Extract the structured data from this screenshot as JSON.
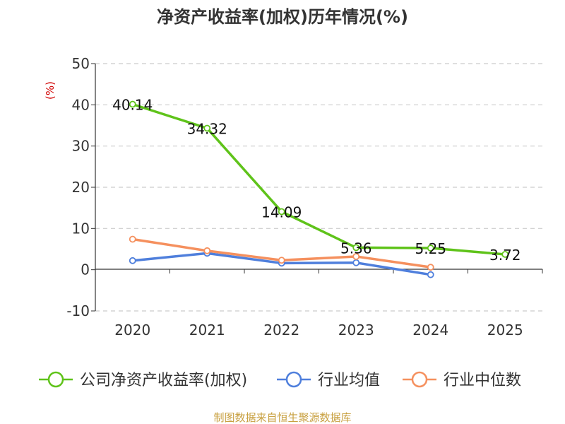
{
  "colors": {
    "company": "#5fc31a",
    "industry_avg": "#4f7fdc",
    "industry_median": "#f5905e",
    "axis": "#333333",
    "grid": "#cccccc",
    "ylabel": "#d10000",
    "source": "#c8a040"
  },
  "chart_data": {
    "type": "line",
    "title": "净资产收益率(加权)历年情况(%)",
    "ylabel": "(%)",
    "xlabel": "",
    "categories": [
      "2020",
      "2021",
      "2022",
      "2023",
      "2024",
      "2025"
    ],
    "ylim": [
      -10,
      50
    ],
    "yticks": [
      -10,
      0,
      10,
      20,
      30,
      40,
      50
    ],
    "grid": true,
    "legend_position": "bottom",
    "series": [
      {
        "name": "公司净资产收益率(加权)",
        "values": [
          40.14,
          34.32,
          14.09,
          5.36,
          5.25,
          3.72
        ],
        "labels": [
          "40.14",
          "34.32",
          "14.09",
          "5.36",
          "5.25",
          "3.72"
        ]
      },
      {
        "name": "行业均值",
        "values": [
          2.2,
          4.0,
          1.6,
          1.7,
          -1.2,
          null
        ]
      },
      {
        "name": "行业中位数",
        "values": [
          7.4,
          4.6,
          2.3,
          3.2,
          0.6,
          null
        ]
      }
    ],
    "source": "制图数据来自恒生聚源数据库"
  }
}
